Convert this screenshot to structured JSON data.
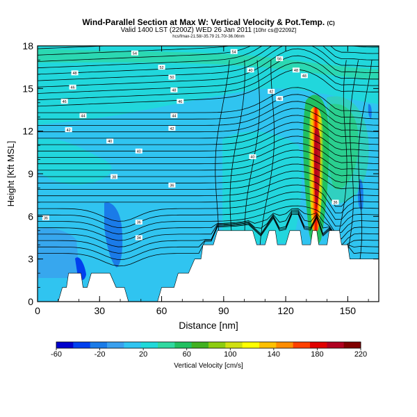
{
  "header": {
    "title": "Wind-Parallel Section at Max W: Vertical Velocity & Pot.Temp.",
    "copyright": "(C)",
    "subtitle": "Valid 1400 LST (2200Z) WED 26 Jan 2011",
    "subtitle_tag": "[10hr cs@2209Z]",
    "coords": "hcs/fmax-21.58/-35.79 21.70/-36.06nm"
  },
  "chart_data": {
    "type": "heatmap",
    "title": "Wind-Parallel Section at Max W: Vertical Velocity & Pot.Temp.",
    "xlabel": "Distance [nm]",
    "ylabel": "Height [Kft MSL]",
    "xlim": [
      0,
      165
    ],
    "ylim": [
      0,
      18
    ],
    "xticks": [
      0,
      30,
      60,
      90,
      120,
      150
    ],
    "yticks": [
      0,
      3,
      6,
      9,
      12,
      15,
      18
    ],
    "colorbar": {
      "label": "Vertical Velocity [cm/s]",
      "min": -60,
      "max": 220,
      "tick_values": [
        -60,
        -20,
        20,
        60,
        100,
        140,
        180,
        220
      ],
      "colors": [
        "#0000cc",
        "#0040ee",
        "#1a7be8",
        "#3aa0ee",
        "#30c4f0",
        "#20d9d9",
        "#30d9a0",
        "#20c060",
        "#40b020",
        "#8ccc10",
        "#d0e010",
        "#ffff00",
        "#ffc000",
        "#ff8c00",
        "#ff4000",
        "#e00000",
        "#b00020",
        "#800000"
      ]
    },
    "background_value_range": [
      0,
      20
    ],
    "terrain": [
      [
        0,
        0
      ],
      [
        10,
        0
      ],
      [
        12,
        1
      ],
      [
        14,
        1
      ],
      [
        15,
        2
      ],
      [
        21,
        2
      ],
      [
        22,
        1
      ],
      [
        24,
        1
      ],
      [
        26,
        2
      ],
      [
        35,
        2
      ],
      [
        38,
        1
      ],
      [
        42,
        1
      ],
      [
        44,
        0
      ],
      [
        58,
        0
      ],
      [
        60,
        1
      ],
      [
        66,
        1
      ],
      [
        68,
        2
      ],
      [
        73,
        2
      ],
      [
        76,
        3
      ],
      [
        79,
        3
      ],
      [
        80,
        4
      ],
      [
        85,
        4
      ],
      [
        87,
        5
      ],
      [
        104,
        5
      ],
      [
        106,
        4
      ],
      [
        110,
        4
      ],
      [
        112,
        5
      ],
      [
        115,
        5
      ],
      [
        116,
        4
      ],
      [
        120,
        4
      ],
      [
        122,
        5
      ],
      [
        127,
        5
      ],
      [
        128,
        4
      ],
      [
        132,
        4
      ],
      [
        133,
        5
      ],
      [
        135,
        5
      ],
      [
        136,
        4
      ],
      [
        140,
        4
      ],
      [
        141,
        5
      ],
      [
        146,
        5
      ],
      [
        147,
        4
      ],
      [
        150,
        4
      ],
      [
        151,
        3
      ],
      [
        165,
        3
      ]
    ],
    "updraft": {
      "x": 134,
      "y_range": [
        5.5,
        15
      ],
      "peak_value": 200
    },
    "theta_labels": [
      {
        "text": "54",
        "x": 47,
        "y": 17.5
      },
      {
        "text": "54",
        "x": 95,
        "y": 17.6
      },
      {
        "text": "52",
        "x": 60,
        "y": 16.5
      },
      {
        "text": "56",
        "x": 117,
        "y": 17.1
      },
      {
        "text": "48",
        "x": 18,
        "y": 16.1
      },
      {
        "text": "50",
        "x": 65,
        "y": 15.8
      },
      {
        "text": "48",
        "x": 66,
        "y": 14.9
      },
      {
        "text": "46",
        "x": 17,
        "y": 15.1
      },
      {
        "text": "40",
        "x": 103,
        "y": 16.3
      },
      {
        "text": "48",
        "x": 125,
        "y": 16.3
      },
      {
        "text": "48",
        "x": 129,
        "y": 15.9
      },
      {
        "text": "46",
        "x": 13,
        "y": 14.1
      },
      {
        "text": "44",
        "x": 22,
        "y": 13.1
      },
      {
        "text": "46",
        "x": 69,
        "y": 14.1
      },
      {
        "text": "44",
        "x": 66,
        "y": 13.1
      },
      {
        "text": "42",
        "x": 113,
        "y": 14.8
      },
      {
        "text": "48",
        "x": 117,
        "y": 14.3
      },
      {
        "text": "42",
        "x": 15,
        "y": 12.1
      },
      {
        "text": "42",
        "x": 65,
        "y": 12.2
      },
      {
        "text": "40",
        "x": 35,
        "y": 11.3
      },
      {
        "text": "40",
        "x": 49,
        "y": 10.6
      },
      {
        "text": "40",
        "x": 104,
        "y": 10.2
      },
      {
        "text": "38",
        "x": 37,
        "y": 8.8
      },
      {
        "text": "36",
        "x": 65,
        "y": 8.2
      },
      {
        "text": "36",
        "x": 4,
        "y": 5.9
      },
      {
        "text": "36",
        "x": 49,
        "y": 5.6
      },
      {
        "text": "34",
        "x": 49,
        "y": 4.5
      },
      {
        "text": "36",
        "x": 144,
        "y": 7.0
      }
    ]
  }
}
